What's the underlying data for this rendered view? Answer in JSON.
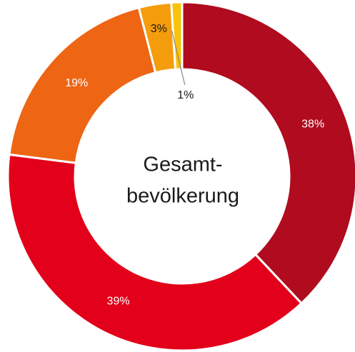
{
  "chart_data": {
    "type": "donut",
    "center_label": [
      "Gesamt-",
      "bevölkerung"
    ],
    "values": [
      38,
      39,
      19,
      3,
      1
    ],
    "value_labels": [
      "38%",
      "39%",
      "19%",
      "3%",
      "1%"
    ],
    "colors": [
      "#b00b1e",
      "#e2001a",
      "#ee6514",
      "#f49c0b",
      "#f8c30c"
    ]
  }
}
